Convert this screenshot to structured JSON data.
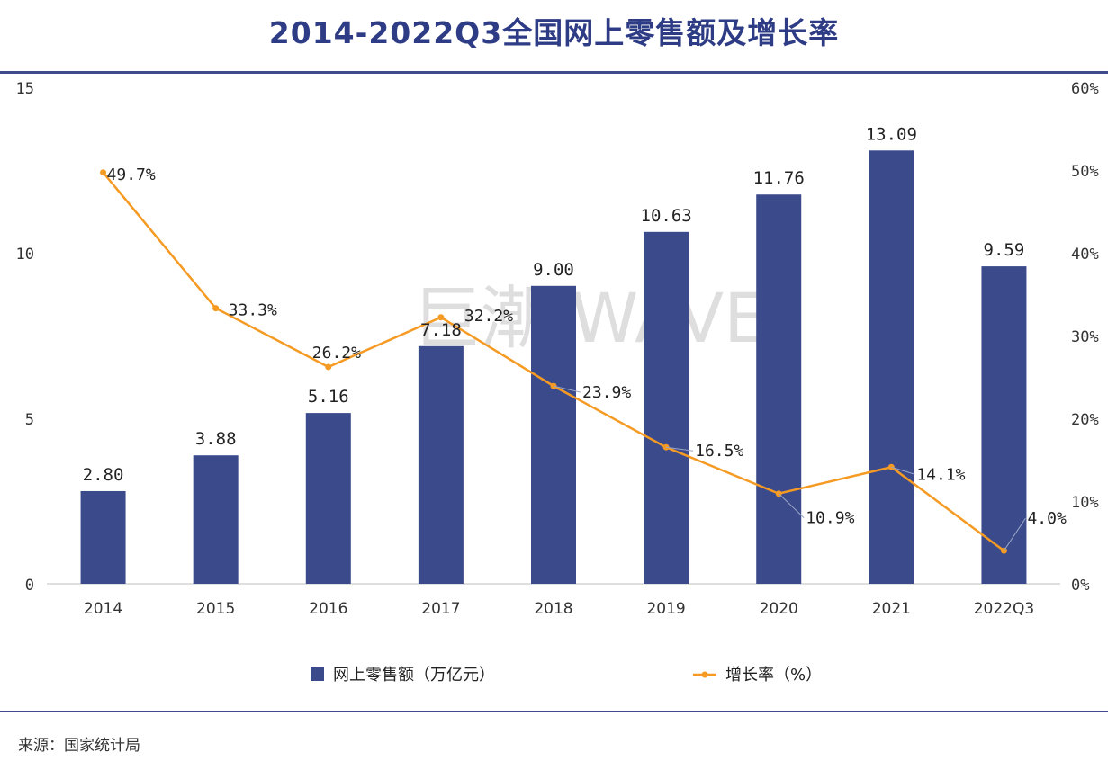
{
  "title": "2014-2022Q3全国网上零售额及增长率",
  "source": "来源：国家统计局",
  "watermark": "巨潮 WAVE",
  "colors": {
    "bar": "#3b4a8b",
    "line": "#f59a23",
    "title": "#2e3c85",
    "axis": "#333333"
  },
  "chart_data": {
    "type": "bar",
    "categories": [
      "2014",
      "2015",
      "2016",
      "2017",
      "2018",
      "2019",
      "2020",
      "2021",
      "2022Q3"
    ],
    "series": [
      {
        "name": "网上零售额（万亿元）",
        "type": "bar",
        "axis": "left",
        "values": [
          2.8,
          3.88,
          5.16,
          7.18,
          9.0,
          10.63,
          11.76,
          13.09,
          9.59
        ],
        "labels": [
          "2.80",
          "3.88",
          "5.16",
          "7.18",
          "9.00",
          "10.63",
          "11.76",
          "13.09",
          "9.59"
        ]
      },
      {
        "name": "增长率（%）",
        "type": "line",
        "axis": "right",
        "values": [
          49.7,
          33.3,
          26.2,
          32.2,
          23.9,
          16.5,
          10.9,
          14.1,
          4.0
        ],
        "labels": [
          "49.7%",
          "33.3%",
          "26.2%",
          "32.2%",
          "23.9%",
          "16.5%",
          "10.9%",
          "14.1%",
          "4.0%"
        ]
      }
    ],
    "ylim_left": [
      0,
      15
    ],
    "yticks_left": [
      "0",
      "5",
      "10",
      "15"
    ],
    "ylim_right": [
      0,
      60
    ],
    "yticks_right": [
      "0%",
      "10%",
      "20%",
      "30%",
      "40%",
      "50%",
      "60%"
    ],
    "grid": false,
    "legend": "bottom"
  }
}
